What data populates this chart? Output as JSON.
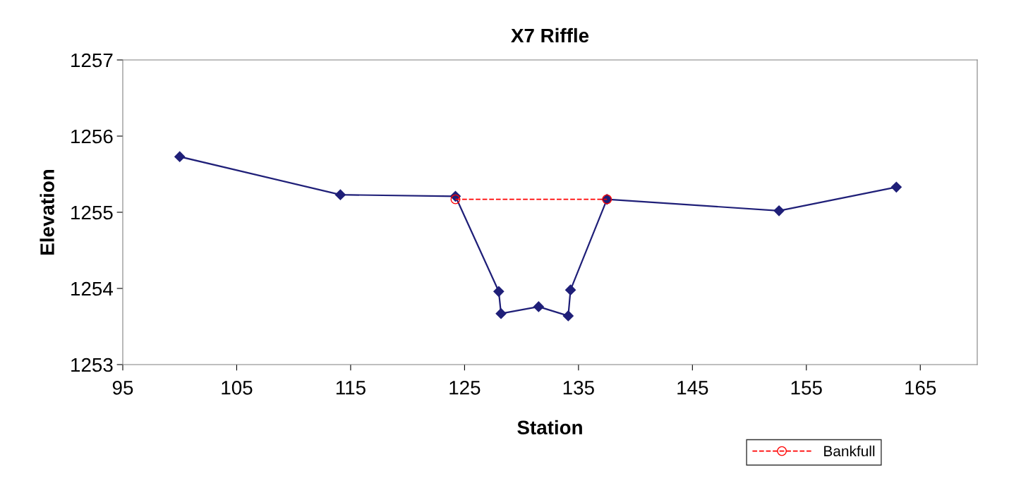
{
  "chart_data": {
    "type": "line",
    "title": "X7 Riffle",
    "xlabel": "Station",
    "ylabel": "Elevation",
    "xlim": [
      95,
      170
    ],
    "xticks": [
      95,
      105,
      115,
      125,
      135,
      145,
      155,
      165
    ],
    "ylim": [
      1253,
      1257
    ],
    "yticks": [
      1253,
      1254,
      1255,
      1256,
      1257
    ],
    "grid": false,
    "legend": "bottom right",
    "series": [
      {
        "color": "#1f1f78",
        "marker": "diamond",
        "line_style": "solid",
        "x": [
          100,
          114.1,
          124.2,
          128.0,
          128.2,
          131.5,
          134.1,
          134.3,
          137.5,
          152.6,
          162.9
        ],
        "values": [
          1255.73,
          1255.23,
          1255.21,
          1253.96,
          1253.67,
          1253.76,
          1253.64,
          1253.98,
          1255.17,
          1255.02,
          1255.33
        ]
      },
      {
        "name": "Bankfull",
        "color": "#ff0000",
        "marker": "circle",
        "line_style": "dashed",
        "x": [
          124.2,
          137.5
        ],
        "values": [
          1255.17,
          1255.17
        ]
      }
    ]
  }
}
